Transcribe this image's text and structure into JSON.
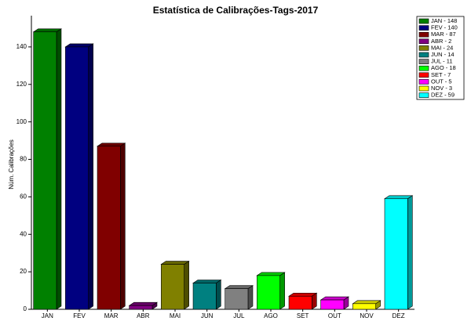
{
  "chart_data": {
    "type": "bar3d",
    "title": "Estatística de Calibrações-Tags-2017",
    "y_label": "Núm. Calibrações",
    "categories": [
      "JAN",
      "FEV",
      "MAR",
      "ABR",
      "MAI",
      "JUN",
      "JUL",
      "AGO",
      "SET",
      "OUT",
      "NOV",
      "DEZ"
    ],
    "values": [
      148,
      140,
      87,
      2,
      24,
      14,
      11,
      18,
      7,
      5,
      3,
      59
    ],
    "colors": [
      "#008000",
      "#000080",
      "#800000",
      "#800080",
      "#808000",
      "#008080",
      "#808080",
      "#00ff00",
      "#ff0000",
      "#ff00ff",
      "#ffff00",
      "#00ffff"
    ],
    "legend": [
      "JAN - 148",
      "FEV - 140",
      "MAR - 87",
      "ABR - 2",
      "MAI - 24",
      "JUN - 14",
      "JUL - 11",
      "AGO - 18",
      "SET - 7",
      "OUT - 5",
      "NOV - 3",
      "DEZ - 59"
    ],
    "ylim": [
      0,
      155
    ],
    "yticks": [
      0,
      20,
      40,
      60,
      80,
      100,
      120,
      140
    ]
  }
}
